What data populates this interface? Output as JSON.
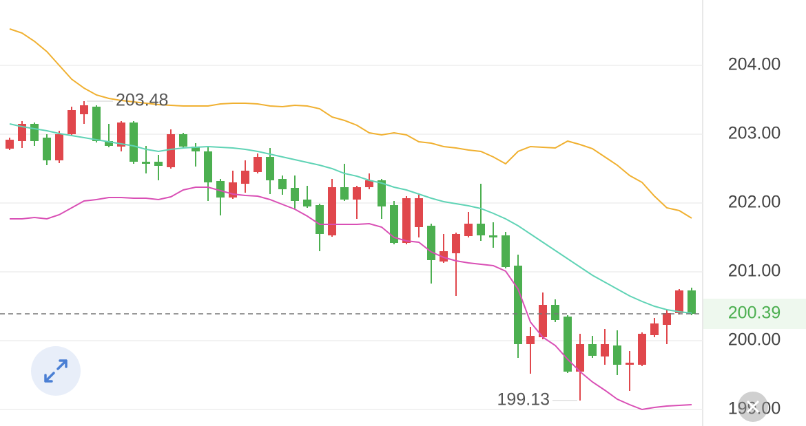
{
  "chart_data": {
    "type": "candlestick",
    "ylim": [
      198.76,
      204.95
    ],
    "yticks": [
      {
        "value": 204,
        "label": "204.00"
      },
      {
        "value": 203,
        "label": "203.00"
      },
      {
        "value": 202,
        "label": "202.00"
      },
      {
        "value": 201,
        "label": "201.00"
      },
      {
        "value": 200,
        "label": "200.00"
      },
      {
        "value": 199,
        "label": "199.00"
      }
    ],
    "grid": true,
    "up_color": "#e0474c",
    "down_color": "#4caf50",
    "open": [
      202.79,
      202.9,
      203.15,
      202.95,
      202.62,
      203.0,
      203.29,
      203.4,
      202.9,
      202.82,
      203.17,
      202.6,
      202.6,
      202.52,
      203.0,
      202.82,
      202.75,
      202.32,
      202.08,
      202.28,
      202.45,
      202.67,
      202.35,
      202.22,
      202.05,
      201.97,
      201.53,
      202.23,
      202.05,
      202.23,
      202.33,
      201.97,
      201.42,
      201.65,
      201.67,
      201.15,
      201.27,
      201.52,
      201.7,
      201.53,
      201.53,
      201.09,
      199.95,
      200.05,
      200.52,
      200.35,
      199.55,
      199.95,
      199.77,
      199.93,
      199.65,
      199.65,
      200.08,
      200.23,
      200.4,
      200.73
    ],
    "high": [
      202.95,
      203.19,
      203.17,
      203.0,
      203.05,
      203.4,
      203.48,
      203.42,
      203.15,
      203.19,
      203.19,
      202.83,
      202.7,
      203.07,
      203.02,
      202.87,
      202.82,
      202.35,
      202.47,
      202.62,
      202.72,
      202.8,
      202.4,
      202.4,
      202.25,
      201.99,
      202.35,
      202.57,
      202.25,
      202.43,
      202.35,
      202.03,
      202.1,
      202.12,
      201.7,
      201.55,
      201.57,
      201.87,
      202.28,
      201.72,
      201.58,
      201.25,
      200.2,
      200.7,
      200.6,
      200.37,
      200.1,
      200.07,
      200.17,
      200.15,
      199.85,
      200.12,
      200.33,
      200.45,
      200.75,
      200.77
    ],
    "low": [
      202.77,
      202.8,
      202.83,
      202.55,
      202.58,
      202.98,
      203.15,
      202.88,
      202.81,
      202.75,
      202.57,
      202.43,
      202.33,
      202.5,
      202.8,
      202.53,
      202.03,
      201.82,
      202.06,
      202.15,
      202.43,
      202.13,
      202.12,
      201.92,
      201.93,
      201.3,
      201.51,
      202.03,
      201.77,
      202.2,
      201.77,
      201.4,
      201.4,
      201.5,
      200.83,
      201.13,
      200.65,
      201.5,
      201.45,
      201.35,
      201.05,
      199.75,
      199.52,
      200.02,
      200.27,
      199.53,
      199.13,
      199.75,
      199.65,
      199.5,
      199.27,
      199.63,
      200.05,
      199.95,
      200.38,
      200.37
    ],
    "close": [
      202.92,
      203.15,
      202.9,
      202.62,
      203.0,
      203.35,
      203.42,
      202.9,
      202.83,
      203.17,
      202.6,
      202.57,
      202.54,
      203.0,
      202.82,
      202.75,
      202.3,
      202.08,
      202.3,
      202.47,
      202.67,
      202.33,
      202.2,
      202.03,
      201.95,
      201.55,
      202.23,
      202.05,
      202.23,
      202.33,
      201.95,
      201.42,
      202.07,
      202.07,
      201.17,
      201.3,
      201.55,
      201.7,
      201.53,
      201.5,
      201.07,
      199.95,
      200.07,
      200.52,
      200.3,
      199.55,
      199.95,
      199.78,
      199.95,
      199.65,
      199.68,
      200.1,
      200.25,
      200.4,
      200.73,
      200.39
    ],
    "series": [
      {
        "color": "#f0b030",
        "values": [
          204.53,
          204.47,
          204.35,
          204.2,
          204.0,
          203.8,
          203.67,
          203.57,
          203.52,
          203.49,
          203.47,
          203.45,
          203.43,
          203.42,
          203.41,
          203.41,
          203.41,
          203.44,
          203.45,
          203.45,
          203.44,
          203.41,
          203.4,
          203.42,
          203.41,
          203.37,
          203.25,
          203.2,
          203.13,
          203.02,
          202.99,
          203.02,
          202.99,
          202.89,
          202.87,
          202.82,
          202.8,
          202.77,
          202.75,
          202.67,
          202.57,
          202.75,
          202.82,
          202.81,
          202.8,
          202.9,
          202.85,
          202.79,
          202.67,
          202.55,
          202.4,
          202.3,
          202.1,
          201.93,
          201.89,
          201.78
        ]
      },
      {
        "color": "#5fd3b5",
        "values": [
          203.15,
          203.11,
          203.08,
          203.05,
          203.01,
          202.98,
          202.95,
          202.92,
          202.89,
          202.86,
          202.83,
          202.78,
          202.75,
          202.78,
          202.8,
          202.81,
          202.82,
          202.81,
          202.8,
          202.78,
          202.75,
          202.71,
          202.67,
          202.63,
          202.59,
          202.55,
          202.5,
          202.43,
          202.39,
          202.33,
          202.29,
          202.23,
          202.19,
          202.13,
          202.07,
          202.02,
          201.99,
          201.96,
          201.92,
          201.85,
          201.77,
          201.67,
          201.55,
          201.43,
          201.31,
          201.19,
          201.07,
          200.95,
          200.85,
          200.75,
          200.65,
          200.57,
          200.5,
          200.45,
          200.42,
          200.4
        ]
      },
      {
        "color": "#d94fb5",
        "values": [
          201.77,
          201.77,
          201.79,
          201.77,
          201.83,
          201.93,
          202.03,
          202.05,
          202.08,
          202.08,
          202.07,
          202.07,
          202.05,
          202.09,
          202.19,
          202.23,
          202.23,
          202.18,
          202.13,
          202.11,
          202.1,
          202.05,
          201.98,
          201.91,
          201.81,
          201.69,
          201.69,
          201.69,
          201.69,
          201.7,
          201.65,
          201.5,
          201.45,
          201.43,
          201.29,
          201.21,
          201.16,
          201.13,
          201.11,
          201.09,
          201.01,
          200.75,
          200.27,
          200.05,
          199.93,
          199.73,
          199.55,
          199.4,
          199.28,
          199.15,
          199.07,
          199.0,
          199.03,
          199.05,
          199.06,
          199.07
        ]
      }
    ],
    "last_price_color": "#4caf50"
  }
}
